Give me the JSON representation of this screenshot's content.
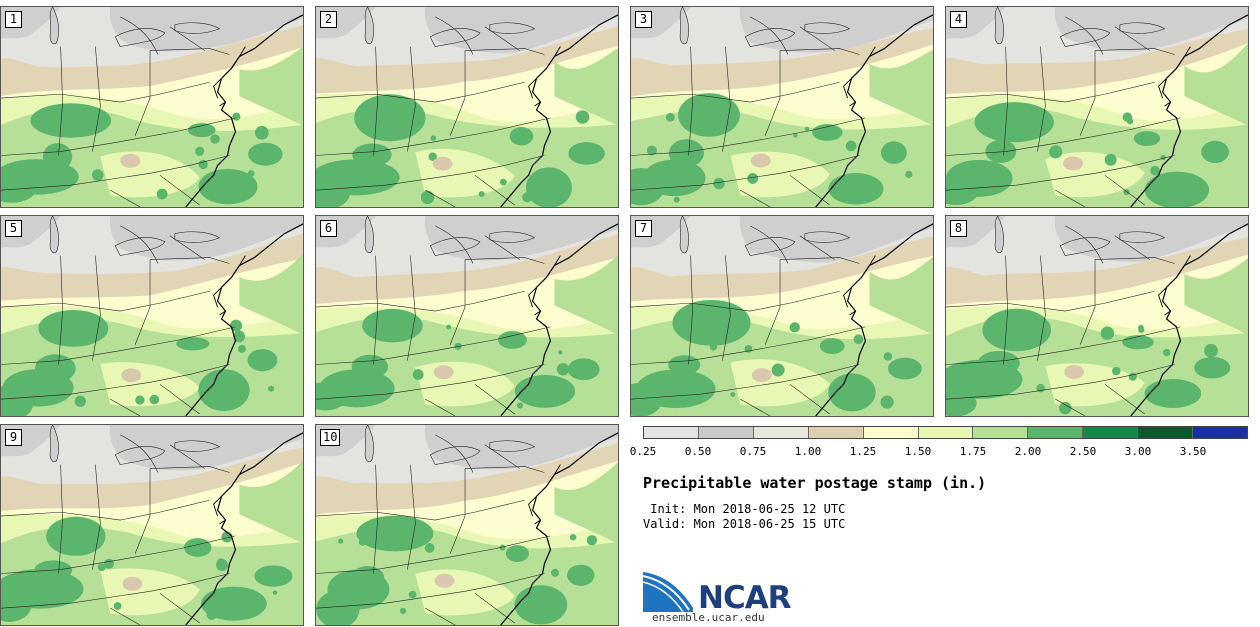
{
  "stamps": [
    {
      "label": "1",
      "member": 1
    },
    {
      "label": "2",
      "member": 2
    },
    {
      "label": "3",
      "member": 3
    },
    {
      "label": "4",
      "member": 4
    },
    {
      "label": "5",
      "member": 5
    },
    {
      "label": "6",
      "member": 6
    },
    {
      "label": "7",
      "member": 7
    },
    {
      "label": "8",
      "member": 8
    },
    {
      "label": "9",
      "member": 9
    },
    {
      "label": "10",
      "member": 10
    }
  ],
  "legend": {
    "units": "in.",
    "ticks": [
      "0.25",
      "0.50",
      "0.75",
      "1.00",
      "1.25",
      "1.50",
      "1.75",
      "2.00",
      "2.50",
      "3.00",
      "3.50"
    ],
    "colors": [
      "#e4e4e4",
      "#c9c9c9",
      "#e7e7dd",
      "#ddcfaf",
      "#fdfdcf",
      "#e9f7b4",
      "#b6e097",
      "#5cb56d",
      "#12884a",
      "#0a5a2d",
      "#1930a8"
    ]
  },
  "title": "Precipitable water postage stamp (in.)",
  "init": " Init: Mon 2018-06-25 12 UTC",
  "valid": "Valid: Mon 2018-06-25 15 UTC",
  "logo": {
    "text": "NCAR",
    "url": "ensemble.ucar.edu"
  }
}
